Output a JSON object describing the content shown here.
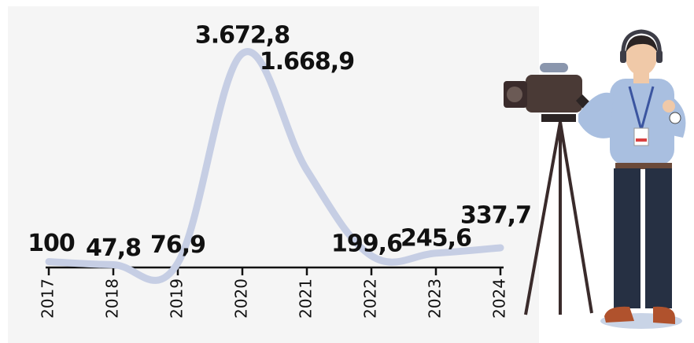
{
  "chart_data": {
    "type": "line",
    "categories": [
      "2017",
      "2018",
      "2019",
      "2020",
      "2021",
      "2022",
      "2023",
      "2024"
    ],
    "values": [
      100,
      47.8,
      76.9,
      3672.8,
      1668.9,
      199.6,
      245.6,
      337.7
    ],
    "value_labels": [
      "100",
      "47,8",
      "76,9",
      "3.672,8",
      "1.668,9",
      "199,6",
      "245,6",
      "337,7"
    ],
    "color": "#c6cee4"
  }
}
